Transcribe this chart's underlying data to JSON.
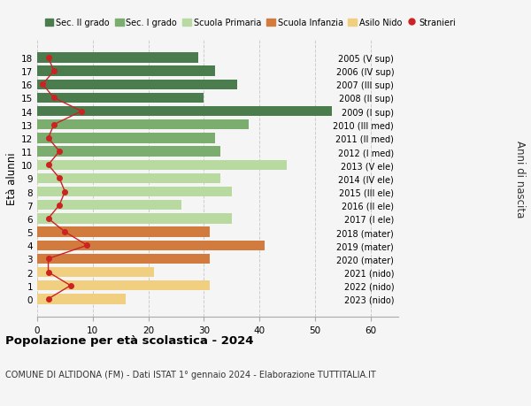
{
  "ages": [
    18,
    17,
    16,
    15,
    14,
    13,
    12,
    11,
    10,
    9,
    8,
    7,
    6,
    5,
    4,
    3,
    2,
    1,
    0
  ],
  "bar_values": [
    29,
    32,
    36,
    30,
    53,
    38,
    32,
    33,
    45,
    33,
    35,
    26,
    35,
    31,
    41,
    31,
    21,
    31,
    16
  ],
  "bar_colors": [
    "#4a7c4e",
    "#4a7c4e",
    "#4a7c4e",
    "#4a7c4e",
    "#4a7c4e",
    "#7aad6e",
    "#7aad6e",
    "#7aad6e",
    "#b8d9a0",
    "#b8d9a0",
    "#b8d9a0",
    "#b8d9a0",
    "#b8d9a0",
    "#d17b3e",
    "#d17b3e",
    "#d17b3e",
    "#f0d080",
    "#f0d080",
    "#f0d080"
  ],
  "stranieri_values": [
    2,
    3,
    1,
    3,
    8,
    3,
    2,
    4,
    2,
    4,
    5,
    4,
    2,
    5,
    9,
    2,
    2,
    6,
    2
  ],
  "year_labels": [
    "2005 (V sup)",
    "2006 (IV sup)",
    "2007 (III sup)",
    "2008 (II sup)",
    "2009 (I sup)",
    "2010 (III med)",
    "2011 (II med)",
    "2012 (I med)",
    "2013 (V ele)",
    "2014 (IV ele)",
    "2015 (III ele)",
    "2016 (II ele)",
    "2017 (I ele)",
    "2018 (mater)",
    "2019 (mater)",
    "2020 (mater)",
    "2021 (nido)",
    "2022 (nido)",
    "2023 (nido)"
  ],
  "legend_labels": [
    "Sec. II grado",
    "Sec. I grado",
    "Scuola Primaria",
    "Scuola Infanzia",
    "Asilo Nido",
    "Stranieri"
  ],
  "legend_colors": [
    "#4a7c4e",
    "#7aad6e",
    "#b8d9a0",
    "#d17b3e",
    "#f0d080",
    "#cc2222"
  ],
  "ylabel_left": "Età alunni",
  "ylabel_right": "Anni di nascita",
  "title_bold": "Popolazione per età scolastica - 2024",
  "subtitle": "COMUNE DI ALTIDONA (FM) - Dati ISTAT 1° gennaio 2024 - Elaborazione TUTTITALIA.IT",
  "xlim": [
    0,
    65
  ],
  "xticks": [
    0,
    10,
    20,
    30,
    40,
    50,
    60
  ],
  "bg_color": "#f5f5f5",
  "stranieri_color": "#cc2222"
}
